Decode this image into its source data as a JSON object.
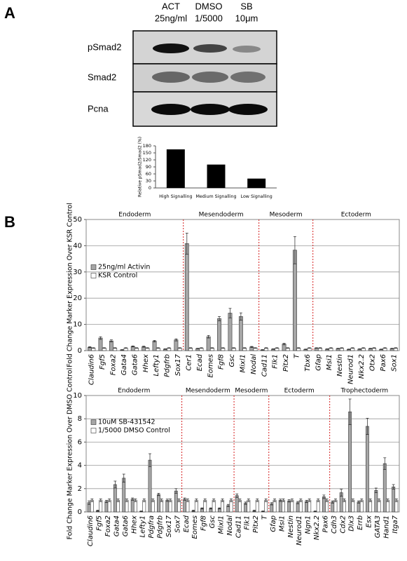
{
  "panels": [
    "A",
    "B"
  ],
  "blot": {
    "columns": [
      [
        "ACT",
        "25ng/ml"
      ],
      [
        "DMSO",
        "1/5000"
      ],
      [
        "SB",
        "10μm"
      ]
    ],
    "rows": [
      "pSmad2",
      "Smad2",
      "Pcna"
    ]
  },
  "chart_data": [
    {
      "type": "bar",
      "y_label": "Relative pSmad2/Smad2 (%)",
      "categories": [
        "High Signalling",
        "Medium Signalling",
        "Low Signalling"
      ],
      "values": [
        165,
        100,
        40
      ],
      "color": "#000000",
      "ylim": [
        0,
        180
      ],
      "yticks": [
        0,
        30,
        60,
        90,
        120,
        150,
        180
      ],
      "grid": false
    },
    {
      "type": "bar",
      "y_label": "Fold Change Marker Expression Over KSR Control",
      "categories": [
        "Claudin6",
        "Fgf5",
        "Foxa2",
        "Gata4",
        "Gata6",
        "Hhex",
        "Lefty1",
        "Pdgfrb",
        "Sox17",
        "Cer1",
        "Ecad",
        "Eomes",
        "Fgf8",
        "Gsc",
        "Mixl1",
        "Nodal",
        "Cad11",
        "Flk1",
        "Pitx2",
        "T",
        "Tbx6",
        "Gfap",
        "Msi1",
        "Nestin",
        "Neurod1",
        "Nkx2.2",
        "Otx2",
        "Pax6",
        "Sox1"
      ],
      "series": [
        {
          "name": "25ng/ml Activin",
          "color": "#a6a6a6",
          "values": [
            1.3,
            4.8,
            3.7,
            0.3,
            1.6,
            1.5,
            3.6,
            0.6,
            4.1,
            40.8,
            0.8,
            5.3,
            12.2,
            14.3,
            13,
            1.4,
            0.3,
            0.6,
            2.5,
            38.3,
            0.5,
            1,
            0.6,
            0.8,
            0.5,
            0.6,
            0.8,
            0.5,
            0.8
          ],
          "errors": [
            0.2,
            0.5,
            0.4,
            0.1,
            0.2,
            0.2,
            0.3,
            0.1,
            0.4,
            4,
            0.1,
            0.5,
            0.8,
            1.8,
            1.4,
            0.2,
            0.1,
            0.1,
            0.3,
            5.2,
            0.1,
            0.1,
            0.1,
            0.1,
            0.1,
            0.1,
            0.1,
            0.1,
            0.1
          ]
        },
        {
          "name": "KSR Control",
          "color": "#ffffff",
          "values": [
            1,
            1,
            1,
            1,
            1,
            1,
            1,
            1,
            1,
            1,
            1,
            1,
            1,
            1,
            1,
            1,
            1,
            1,
            1,
            1,
            1,
            1,
            1,
            1,
            1,
            1,
            1,
            1,
            1
          ],
          "errors": [
            0.1,
            0.1,
            0.1,
            0.1,
            0.1,
            0.1,
            0.1,
            0.1,
            0.1,
            0.1,
            0.1,
            0.1,
            0.1,
            0.1,
            0.1,
            0.1,
            0.1,
            0.1,
            0.1,
            0.1,
            0.1,
            0.1,
            0.1,
            0.1,
            0.1,
            0.1,
            0.1,
            0.1,
            0.1
          ]
        }
      ],
      "sections": [
        {
          "label": "Endoderm",
          "size": 9
        },
        {
          "label": "Mesendoderm",
          "size": 7
        },
        {
          "label": "Mesoderm",
          "size": 5
        },
        {
          "label": "Ectoderm",
          "size": 8
        }
      ],
      "section_color": "#d62020",
      "ylim": [
        0,
        50
      ],
      "yticks": [
        0,
        10,
        20,
        30,
        40,
        50
      ],
      "grid": true,
      "legend": "upper left"
    },
    {
      "type": "bar",
      "y_label": "Fold Change Marker Expression Over DMSO Control",
      "categories": [
        "Claudin6",
        "Fgf5",
        "Foxa2",
        "Gata4",
        "Gata6",
        "Hhex",
        "Lefty1",
        "Pdgfra",
        "Pdgfrb",
        "Sox17",
        "Sox7",
        "Ecad",
        "Eomes",
        "Fgf8",
        "Gsc",
        "Mixl1",
        "Nodal",
        "Cad11",
        "Flk1",
        "Pitx2",
        "T",
        "Gfap",
        "Msi1",
        "Nestin",
        "Neurod1",
        "Ngn1",
        "Nkx2.2",
        "Pax6",
        "Cdh3",
        "Cdx2",
        "Dlx3",
        "Errb",
        "Esx",
        "GATA3",
        "Hand1",
        "Itga7"
      ],
      "series": [
        {
          "name": "10uM SB-431542",
          "color": "#a6a6a6",
          "values": [
            0.8,
            0.1,
            0.9,
            2.35,
            2.9,
            1.1,
            0.05,
            4.45,
            1.5,
            1.0,
            1.8,
            1.1,
            0.1,
            0.3,
            0.3,
            0.3,
            0.55,
            1.4,
            0.75,
            0.1,
            0.05,
            0.7,
            1.0,
            0.95,
            0.8,
            0.9,
            0.05,
            1.3,
            0.85,
            1.65,
            8.6,
            0.85,
            7.35,
            1.85,
            4.15,
            2.15
          ],
          "errors": [
            0.15,
            0.05,
            0.1,
            0.3,
            0.35,
            0.1,
            0.03,
            0.55,
            0.1,
            0.1,
            0.2,
            0.1,
            0.05,
            0.05,
            0.05,
            0.05,
            0.1,
            0.15,
            0.1,
            0.05,
            0.03,
            0.1,
            0.1,
            0.1,
            0.1,
            0.1,
            0.03,
            0.15,
            0.1,
            0.3,
            1.1,
            0.1,
            0.7,
            0.2,
            0.5,
            0.2
          ]
        },
        {
          "name": "1/5000 DMSO Control",
          "color": "#ffffff",
          "values": [
            1,
            1,
            1,
            1,
            1,
            1,
            1,
            1,
            1,
            1,
            1,
            1,
            1,
            1,
            1,
            1,
            1,
            1,
            1,
            1,
            1,
            1,
            1,
            1,
            1,
            1,
            1,
            1,
            1,
            1,
            1,
            1,
            1,
            1,
            1,
            1
          ],
          "errors": [
            0.12,
            0.12,
            0.12,
            0.12,
            0.12,
            0.12,
            0.12,
            0.12,
            0.12,
            0.12,
            0.12,
            0.12,
            0.12,
            0.12,
            0.12,
            0.12,
            0.12,
            0.12,
            0.12,
            0.12,
            0.12,
            0.12,
            0.12,
            0.12,
            0.12,
            0.12,
            0.12,
            0.12,
            0.12,
            0.12,
            0.12,
            0.12,
            0.12,
            0.12,
            0.12,
            0.12
          ]
        }
      ],
      "sections": [
        {
          "label": "Endoderm",
          "size": 11
        },
        {
          "label": "Mesendoderm",
          "size": 6
        },
        {
          "label": "Mesoderm",
          "size": 4
        },
        {
          "label": "Ectoderm",
          "size": 7
        },
        {
          "label": "Trophectoderm",
          "size": 8
        }
      ],
      "section_color": "#d62020",
      "ylim": [
        0,
        10
      ],
      "yticks": [
        0,
        2,
        4,
        6,
        8,
        10
      ],
      "grid": true,
      "legend": "upper left"
    }
  ]
}
